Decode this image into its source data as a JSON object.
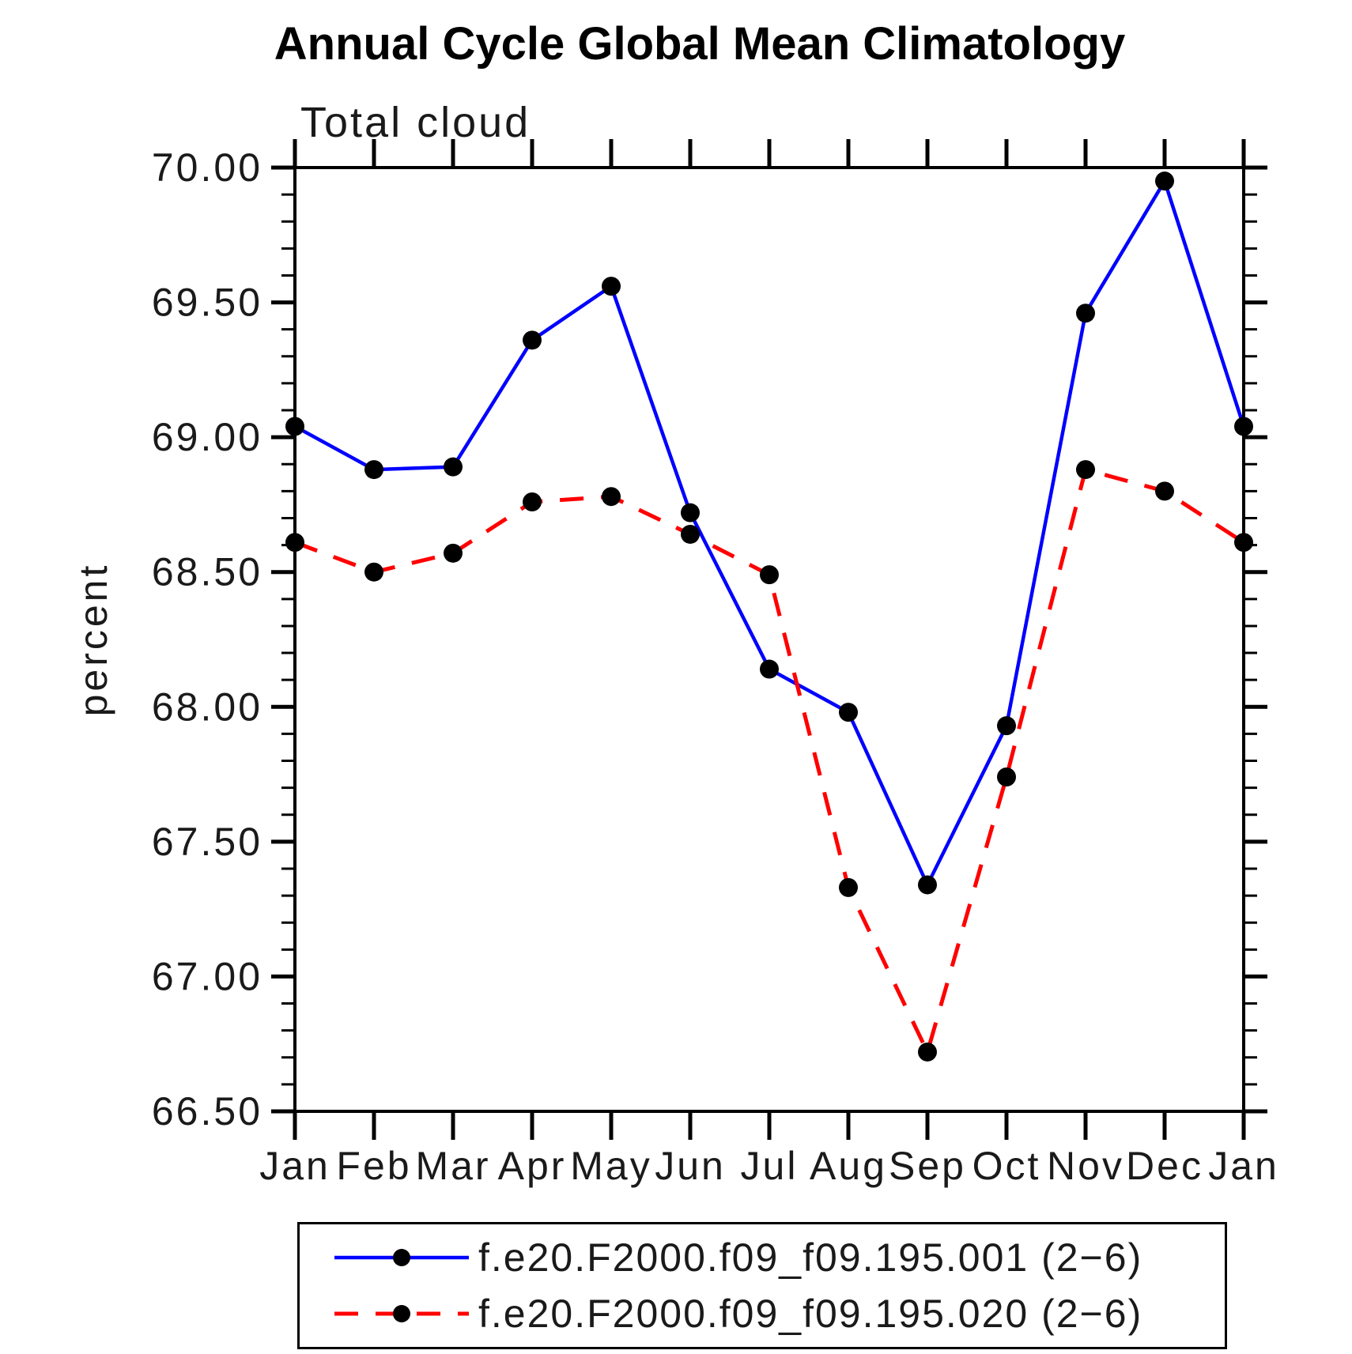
{
  "title": "Annual Cycle Global Mean Climatology",
  "subtitle": "Total cloud",
  "ylabel": "percent",
  "chart_data": {
    "type": "line",
    "title": "Annual Cycle Global Mean Climatology",
    "subtitle": "Total cloud",
    "xlabel": "",
    "ylabel": "percent",
    "x_categories": [
      "Jan",
      "Feb",
      "Mar",
      "Apr",
      "May",
      "Jun",
      "Jul",
      "Aug",
      "Sep",
      "Oct",
      "Nov",
      "Dec",
      "Jan"
    ],
    "y_ticks": [
      "70.00",
      "69.50",
      "69.00",
      "68.50",
      "68.00",
      "67.50",
      "67.00",
      "66.50"
    ],
    "ylim": [
      66.5,
      70.0
    ],
    "y_minor_step": 0.1,
    "grid": false,
    "legend_position": "bottom",
    "marker": "filled-circle",
    "marker_color": "#000000",
    "series": [
      {
        "name": "f.e20.F2000.f09_f09.195.001 (2−6)",
        "color": "#0000ff",
        "style": "solid",
        "values": [
          69.04,
          68.88,
          68.89,
          69.36,
          69.56,
          68.72,
          68.14,
          67.98,
          67.34,
          67.93,
          69.46,
          69.95,
          69.04
        ]
      },
      {
        "name": "f.e20.F2000.f09_f09.195.020 (2−6)",
        "color": "#ff0000",
        "style": "dashed",
        "values": [
          68.61,
          68.5,
          68.57,
          68.76,
          68.78,
          68.64,
          68.49,
          67.33,
          66.72,
          67.74,
          68.88,
          68.8,
          68.61
        ]
      }
    ]
  }
}
